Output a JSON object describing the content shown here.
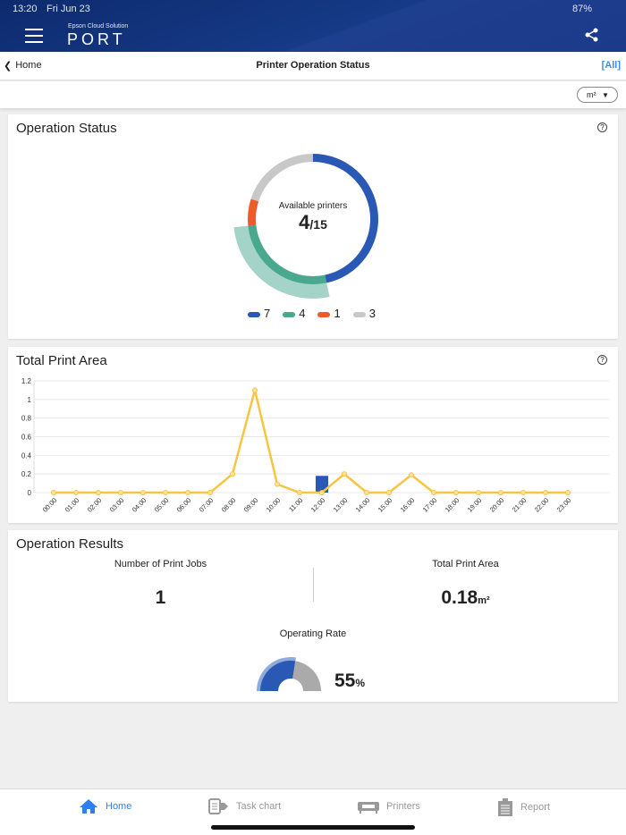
{
  "status_bar": {
    "time": "13:20",
    "date": "Fri Jun 23",
    "battery": "87%"
  },
  "header": {
    "brand_sub": "Epson Cloud Solution",
    "brand": "PORT"
  },
  "nav": {
    "back": "Home",
    "title": "Printer Operation Status",
    "filter": "[All]"
  },
  "unit_select": "m²",
  "operation_status": {
    "title": "Operation Status",
    "center_label": "Available printers",
    "available": "4",
    "total": "/15",
    "segments": [
      {
        "value": 7,
        "color": "#2a58b5"
      },
      {
        "value": 4,
        "color": "#4aa88f"
      },
      {
        "value": 1,
        "color": "#ee5a2a"
      },
      {
        "value": 3,
        "color": "#c8c8c8"
      }
    ],
    "legend": [
      "7",
      "4",
      "1",
      "3"
    ]
  },
  "chart_data": {
    "type": "line",
    "title": "Total Print Area",
    "ylim": [
      0,
      1.2
    ],
    "yticks": [
      "0",
      "0.2",
      "0.4",
      "0.6",
      "0.8",
      "1",
      "1.2"
    ],
    "categories": [
      "00:00",
      "01:00",
      "02:00",
      "03:00",
      "04:00",
      "05:00",
      "06:00",
      "07:00",
      "08:00",
      "09:00",
      "10:00",
      "11:00",
      "12:00",
      "13:00",
      "14:00",
      "15:00",
      "16:00",
      "17:00",
      "18:00",
      "19:00",
      "20:00",
      "21:00",
      "22:00",
      "23:00"
    ],
    "series": [
      {
        "type": "line",
        "color": "#f8c443",
        "values": [
          0,
          0,
          0,
          0,
          0,
          0,
          0,
          0,
          0.2,
          1.1,
          0.09,
          0,
          0,
          0.2,
          0,
          0,
          0.19,
          0,
          0,
          0,
          0,
          0,
          0,
          0
        ]
      },
      {
        "type": "bar",
        "color": "#2a58b5",
        "values": [
          0,
          0,
          0,
          0,
          0,
          0,
          0,
          0,
          0,
          0,
          0,
          0,
          0.18,
          0,
          0,
          0,
          0,
          0,
          0,
          0,
          0,
          0,
          0,
          0
        ]
      }
    ],
    "grid": true
  },
  "results": {
    "title": "Operation Results",
    "jobs_label": "Number of Print Jobs",
    "jobs": "1",
    "area_label": "Total Print Area",
    "area": "0.18",
    "area_unit": "m²",
    "rate_label": "Operating Rate",
    "rate": "55",
    "rate_unit": "%",
    "rate_value": 55
  },
  "tabs": [
    {
      "label": "Home",
      "icon": "home-icon",
      "active": true
    },
    {
      "label": "Task chart",
      "icon": "task-chart-icon"
    },
    {
      "label": "Printers",
      "icon": "printer-icon"
    },
    {
      "label": "Report",
      "icon": "report-icon"
    }
  ]
}
